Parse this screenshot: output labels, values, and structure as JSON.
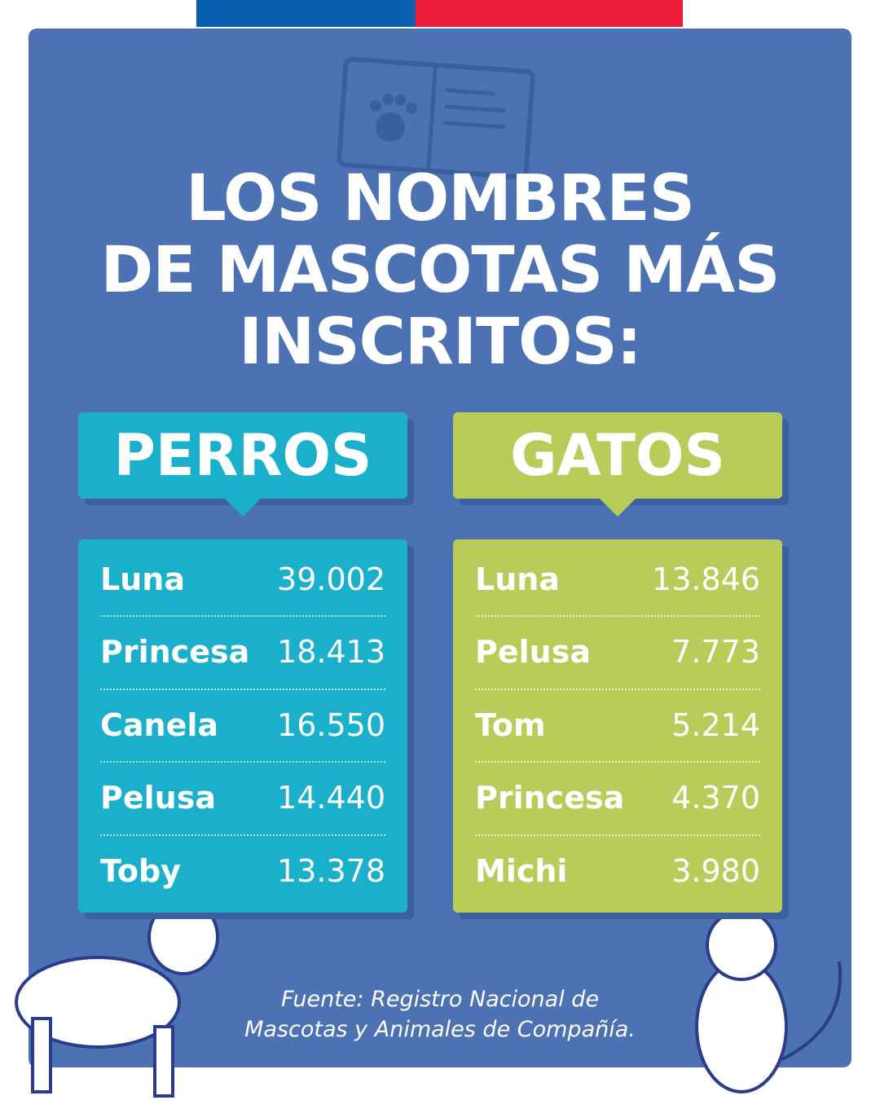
{
  "header": {
    "title_lines": [
      "LOS NOMBRES",
      "DE MASCOTAS MÁS",
      "INSCRITOS:"
    ]
  },
  "tables": [
    {
      "label": "PERROS",
      "rows": [
        [
          "Luna",
          "39.002"
        ],
        [
          "Princesa",
          "18.413"
        ],
        [
          "Canela",
          "16.550"
        ],
        [
          "Pelusa",
          "14.440"
        ],
        [
          "Toby",
          "13.378"
        ]
      ]
    },
    {
      "label": "GATOS",
      "rows": [
        [
          "Luna",
          "13.846"
        ],
        [
          "Pelusa",
          "7.773"
        ],
        [
          "Tom",
          "5.214"
        ],
        [
          "Princesa",
          "4.370"
        ],
        [
          "Michi",
          "3.980"
        ]
      ]
    }
  ],
  "footer": {
    "source_lines": [
      "Fuente: Registro Nacional de",
      "Mascotas y Animales de Compañía."
    ]
  }
}
